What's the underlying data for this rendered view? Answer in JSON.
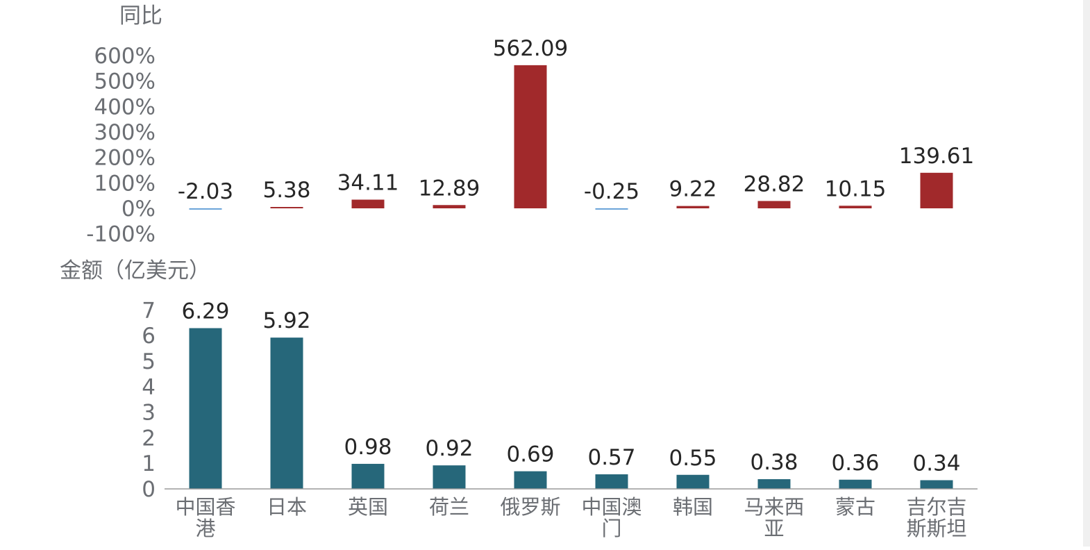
{
  "chart_data": [
    {
      "type": "bar",
      "ylabel": "同比",
      "yticks": [
        "600%",
        "500%",
        "400%",
        "300%",
        "200%",
        "100%",
        "0%",
        "-100%"
      ],
      "ylim": [
        -100,
        600
      ],
      "categories": [
        "中国香港",
        "日本",
        "英国",
        "荷兰",
        "俄罗斯",
        "中国澳门",
        "韩国",
        "马来西亚",
        "蒙古",
        "吉尔吉斯斯坦"
      ],
      "values": [
        -2.03,
        5.38,
        34.11,
        12.89,
        562.09,
        -0.25,
        9.22,
        28.82,
        10.15,
        139.61
      ],
      "value_labels": [
        "-2.03",
        "5.38",
        "34.11",
        "12.89",
        "562.09",
        "-0.25",
        "9.22",
        "28.82",
        "10.15",
        "139.61"
      ],
      "colors": {
        "positive": "#a1292b",
        "negative": "#5b9bd5"
      },
      "grid": false
    },
    {
      "type": "bar",
      "ylabel": "金额（亿美元）",
      "yticks": [
        "7",
        "6",
        "5",
        "4",
        "3",
        "2",
        "1",
        "0"
      ],
      "ylim": [
        0,
        7
      ],
      "categories": [
        "中国香港",
        "日本",
        "英国",
        "荷兰",
        "俄罗斯",
        "中国澳门",
        "韩国",
        "马来西亚",
        "蒙古",
        "吉尔吉斯斯坦"
      ],
      "category_lines": [
        [
          "中国香",
          "港"
        ],
        [
          "日本"
        ],
        [
          "英国"
        ],
        [
          "荷兰"
        ],
        [
          "俄罗斯"
        ],
        [
          "中国澳",
          "门"
        ],
        [
          "韩国"
        ],
        [
          "马来西",
          "亚"
        ],
        [
          "蒙古"
        ],
        [
          "吉尔吉",
          "斯斯坦"
        ]
      ],
      "values": [
        6.29,
        5.92,
        0.98,
        0.92,
        0.69,
        0.57,
        0.55,
        0.38,
        0.36,
        0.34
      ],
      "value_labels": [
        "6.29",
        "5.92",
        "0.98",
        "0.92",
        "0.69",
        "0.57",
        "0.55",
        "0.38",
        "0.36",
        "0.34"
      ],
      "colors": {
        "bar": "#26677a"
      },
      "grid": false
    }
  ]
}
